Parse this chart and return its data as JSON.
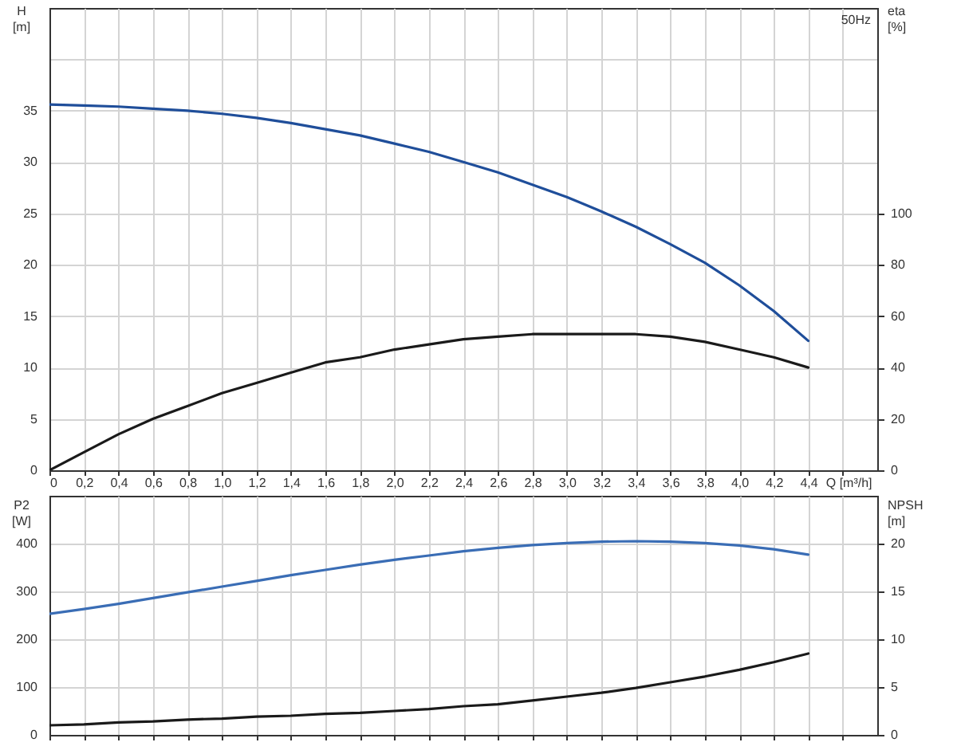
{
  "chart_data": [
    {
      "type": "line",
      "ylabel": "H [m]",
      "y2label": "eta [%]",
      "xlabel": "Q [m³/h]",
      "annotations": [
        "50Hz"
      ],
      "grid": true,
      "x": [
        0,
        0.2,
        0.4,
        0.6,
        0.8,
        1.0,
        1.2,
        1.4,
        1.6,
        1.8,
        2.0,
        2.2,
        2.4,
        2.6,
        2.8,
        3.0,
        3.2,
        3.4,
        3.6,
        3.8,
        4.0,
        4.2,
        4.4
      ],
      "xlim": [
        0,
        4.8
      ],
      "xticks": [
        0,
        {
          "value": 0.2,
          "label": "0,2"
        },
        {
          "value": 0.4,
          "label": "0,4"
        },
        {
          "value": 0.6,
          "label": "0,6"
        },
        {
          "value": 0.8,
          "label": "0,8"
        },
        {
          "value": 1.0,
          "label": "1,0"
        },
        {
          "value": 1.2,
          "label": "1,2"
        },
        {
          "value": 1.4,
          "label": "1,4"
        },
        {
          "value": 1.6,
          "label": "1,6"
        },
        {
          "value": 1.8,
          "label": "1,8"
        },
        {
          "value": 2.0,
          "label": "2,0"
        },
        {
          "value": 2.2,
          "label": "2,2"
        },
        {
          "value": 2.4,
          "label": "2,4"
        },
        {
          "value": 2.6,
          "label": "2,6"
        },
        {
          "value": 2.8,
          "label": "2,8"
        },
        {
          "value": 3.0,
          "label": "3,0"
        },
        {
          "value": 3.2,
          "label": "3,2"
        },
        {
          "value": 3.4,
          "label": "3,4"
        },
        {
          "value": 3.6,
          "label": "3,6"
        },
        {
          "value": 3.8,
          "label": "3,8"
        },
        {
          "value": 4.0,
          "label": "4,0"
        },
        {
          "value": 4.2,
          "label": "4,2"
        },
        {
          "value": 4.4,
          "label": "4,4"
        },
        {
          "value": 4.6,
          "label": null
        }
      ],
      "ylim": [
        0,
        45
      ],
      "yticks": [
        0,
        5,
        10,
        15,
        20,
        25,
        30,
        35,
        {
          "value": 40,
          "label": null
        }
      ],
      "y2lim": [
        0,
        180
      ],
      "y2ticks": [
        0,
        20,
        40,
        60,
        80,
        100
      ],
      "series": [
        {
          "color": "#1f4e9a",
          "values": [
            35.6,
            35.5,
            35.4,
            35.2,
            35.0,
            34.7,
            34.3,
            33.8,
            33.2,
            32.6,
            31.8,
            31.0,
            30.0,
            29.0,
            27.8,
            26.6,
            25.2,
            23.7,
            22.0,
            20.2,
            18.0,
            15.5,
            12.6
          ]
        },
        {
          "color": "#1a1a1a",
          "axis": "y2",
          "values": [
            0,
            7,
            14,
            20,
            25,
            30,
            34,
            38,
            42,
            44,
            47,
            49,
            51,
            52,
            53,
            53,
            53,
            53,
            52,
            50,
            47,
            44,
            40
          ]
        }
      ]
    },
    {
      "type": "line",
      "ylabel": "P2 [W]",
      "y2label": "NPSH [m]",
      "grid": true,
      "tick_labels": "y",
      "x": [
        0,
        0.2,
        0.4,
        0.6,
        0.8,
        1.0,
        1.2,
        1.4,
        1.6,
        1.8,
        2.0,
        2.2,
        2.4,
        2.6,
        2.8,
        3.0,
        3.2,
        3.4,
        3.6,
        3.8,
        4.0,
        4.2,
        4.4
      ],
      "xlim": [
        0,
        4.8
      ],
      "xticks": [
        0,
        0.2,
        0.4,
        0.6,
        0.8,
        1.0,
        1.2,
        1.4,
        1.6,
        1.8,
        2.0,
        2.2,
        2.4,
        2.6,
        2.8,
        3.0,
        3.2,
        3.4,
        3.6,
        3.8,
        4.0,
        4.2,
        4.4,
        4.6
      ],
      "ylim": [
        0,
        500
      ],
      "yticks": [
        0,
        100,
        200,
        300,
        400
      ],
      "y2lim": [
        0,
        25
      ],
      "y2ticks": [
        0,
        5,
        10,
        15,
        20
      ],
      "series": [
        {
          "color": "#3a6db5",
          "values": [
            253,
            263,
            274,
            286,
            298,
            310,
            322,
            334,
            345,
            356,
            366,
            375,
            384,
            391,
            397,
            401,
            404,
            405,
            404,
            401,
            396,
            388,
            377
          ]
        },
        {
          "color": "#1a1a1a",
          "axis": "y2",
          "values": [
            1.0,
            1.1,
            1.3,
            1.4,
            1.6,
            1.7,
            1.9,
            2.0,
            2.2,
            2.3,
            2.5,
            2.7,
            3.0,
            3.2,
            3.6,
            4.0,
            4.4,
            4.9,
            5.5,
            6.1,
            6.8,
            7.6,
            8.5
          ]
        }
      ]
    }
  ]
}
